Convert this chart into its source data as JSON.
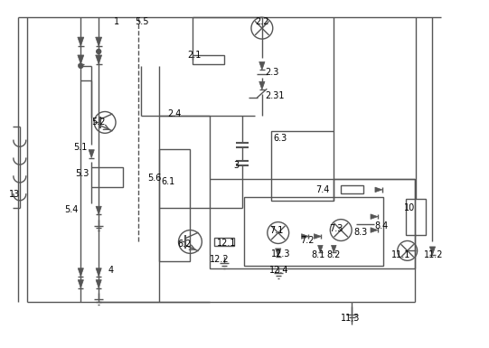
{
  "lc": "#555555",
  "lw": 1.0,
  "fig_w": 5.41,
  "fig_h": 3.85,
  "dpi": 100
}
